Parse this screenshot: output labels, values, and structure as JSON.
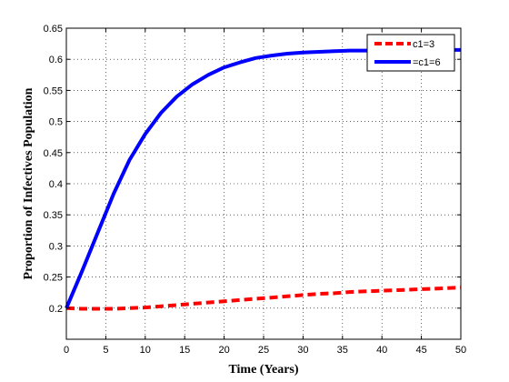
{
  "chart_data": {
    "type": "line",
    "title": "",
    "xlabel": "Time (Years)",
    "ylabel": "Proportion of Infectives Population",
    "xlim": [
      0,
      50
    ],
    "ylim": [
      0.15,
      0.65
    ],
    "x_ticks": [
      0,
      5,
      10,
      15,
      20,
      25,
      30,
      35,
      40,
      45,
      50
    ],
    "y_ticks": [
      0.2,
      0.25,
      0.3,
      0.35,
      0.4,
      0.45,
      0.5,
      0.55,
      0.6,
      0.65
    ],
    "grid": true,
    "legend_position": "top-right",
    "series": [
      {
        "name": "c1=3",
        "color": "#ff0000",
        "style": "dashed",
        "x": [
          0,
          2,
          4,
          6,
          8,
          10,
          12,
          14,
          16,
          18,
          20,
          22,
          24,
          26,
          28,
          30,
          32,
          34,
          36,
          38,
          40,
          42,
          44,
          46,
          48,
          50
        ],
        "y": [
          0.2,
          0.199,
          0.199,
          0.199,
          0.2,
          0.201,
          0.203,
          0.205,
          0.207,
          0.209,
          0.211,
          0.213,
          0.215,
          0.217,
          0.219,
          0.221,
          0.223,
          0.224,
          0.226,
          0.227,
          0.228,
          0.229,
          0.23,
          0.231,
          0.232,
          0.233
        ]
      },
      {
        "name": "=c1=6",
        "color": "#0000ff",
        "style": "solid",
        "x": [
          0,
          2,
          4,
          6,
          8,
          10,
          12,
          14,
          16,
          18,
          20,
          22,
          24,
          26,
          28,
          30,
          32,
          34,
          36,
          38,
          40,
          42,
          44,
          46,
          48,
          50
        ],
        "y": [
          0.2,
          0.26,
          0.322,
          0.384,
          0.438,
          0.48,
          0.514,
          0.54,
          0.56,
          0.575,
          0.587,
          0.595,
          0.602,
          0.606,
          0.609,
          0.611,
          0.612,
          0.613,
          0.614,
          0.614,
          0.614,
          0.614,
          0.615,
          0.615,
          0.615,
          0.615
        ]
      }
    ]
  }
}
